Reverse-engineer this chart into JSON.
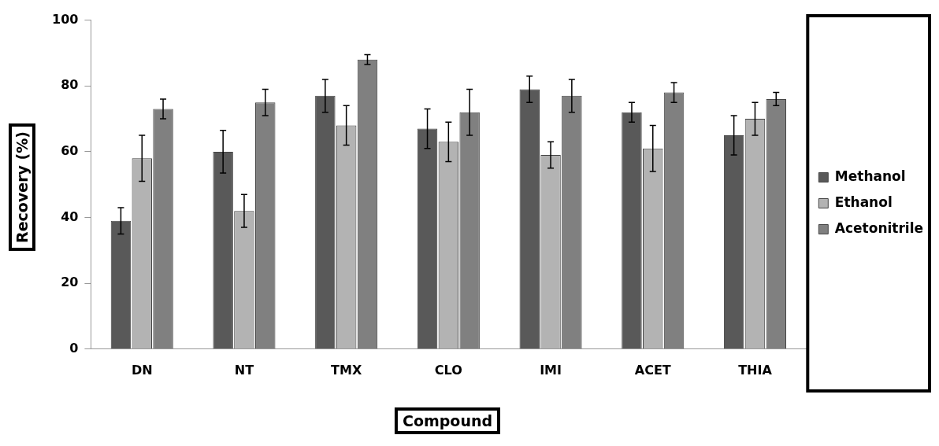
{
  "chart_data": {
    "type": "bar",
    "xlabel": "Compound",
    "ylabel": "Recovery (%)",
    "categories": [
      "DN",
      "NT",
      "TMX",
      "CLO",
      "IMI",
      "ACET",
      "THIA"
    ],
    "series": [
      {
        "name": "Methanol",
        "color": "#595959",
        "values": [
          39,
          60,
          77,
          67,
          79,
          72,
          65
        ],
        "errors": [
          4,
          6.5,
          5,
          6,
          4,
          3,
          6
        ]
      },
      {
        "name": "Ethanol",
        "color": "#b3b3b3",
        "values": [
          58,
          42,
          68,
          63,
          59,
          61,
          70
        ],
        "errors": [
          7,
          5,
          6,
          6,
          4,
          7,
          5
        ]
      },
      {
        "name": "Acetonitrile",
        "color": "#808080",
        "values": [
          73,
          75,
          88,
          72,
          77,
          78,
          76
        ],
        "errors": [
          3,
          4,
          1.5,
          7,
          5,
          3,
          2
        ]
      }
    ],
    "ylim": [
      0,
      100
    ],
    "yticks": [
      0,
      20,
      40,
      60,
      80,
      100
    ],
    "legend": "right"
  }
}
